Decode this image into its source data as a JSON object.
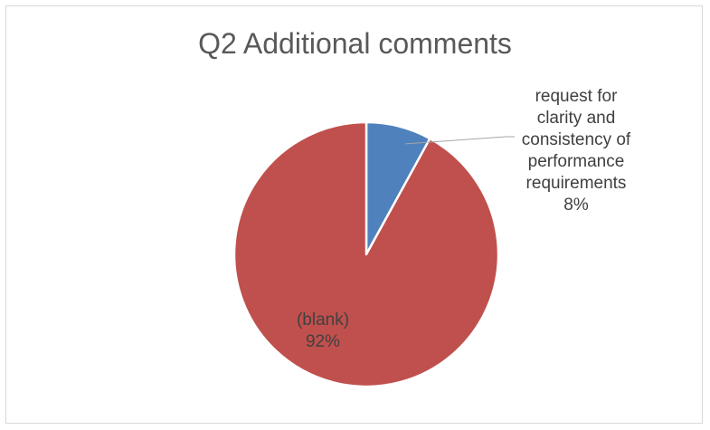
{
  "chart_data": {
    "type": "pie",
    "title": "Q2 Additional comments",
    "slices": [
      {
        "label": "request for clarity and consistency of performance requirements",
        "label_lines": [
          "request for",
          "clarity and",
          "consistency of",
          "performance",
          "requirements"
        ],
        "percent_text": "8%",
        "value": 8,
        "color": "#4f81bd"
      },
      {
        "label": "(blank)",
        "label_lines": [
          "(blank)"
        ],
        "percent_text": "92%",
        "value": 92,
        "color": "#c0504d"
      }
    ],
    "label_color": "#404040",
    "leader_color": "#a6a6a6"
  }
}
